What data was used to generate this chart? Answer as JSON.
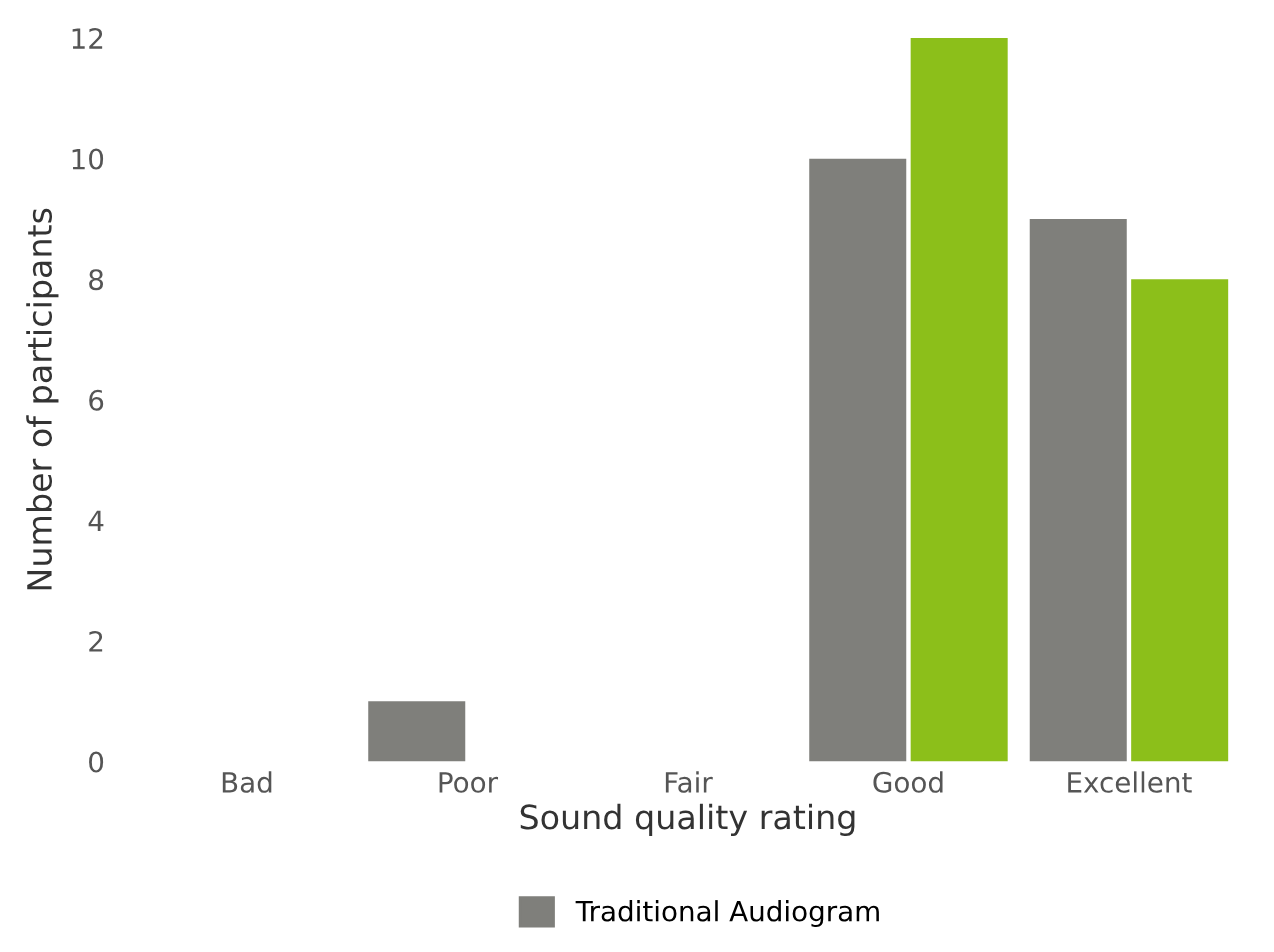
{
  "chart_data": {
    "type": "bar",
    "xlabel": "Sound quality rating",
    "ylabel": "Number of participants",
    "categories": [
      "Bad",
      "Poor",
      "Fair",
      "Good",
      "Excellent"
    ],
    "series": [
      {
        "name": "Traditional Audiogram",
        "color": "#7f7f7b",
        "values": [
          0,
          1,
          0,
          10,
          9
        ]
      },
      {
        "color": "#8cbf1a",
        "values": [
          0,
          0,
          0,
          12,
          8
        ]
      }
    ],
    "ylim": [
      0,
      12
    ],
    "yticks": [
      0,
      2,
      4,
      6,
      8,
      10,
      12
    ],
    "grid": false,
    "legend": "bottom"
  }
}
